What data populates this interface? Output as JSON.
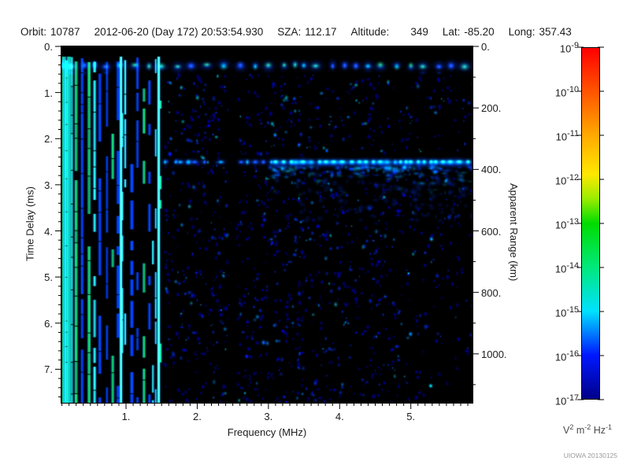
{
  "header": {
    "items": [
      {
        "label": "Orbit:",
        "value": "10787"
      },
      {
        "label": "",
        "value": "2012-06-20 (Day 172) 20:53:54.930"
      },
      {
        "label": "SZA:",
        "value": "112.17"
      },
      {
        "label": "Altitude:",
        "value": "349"
      },
      {
        "label": "Lat:",
        "value": "-85.20"
      },
      {
        "label": "Long:",
        "value": "357.43"
      }
    ]
  },
  "credit": "UIOWA 20130125",
  "chart_data": {
    "type": "heatmap",
    "title": "",
    "xlabel": "Frequency (MHz)",
    "ylabel_left": "Time Delay (ms)",
    "ylabel_right": "Apparent Range (km)",
    "xlim": [
      0.093,
      5.866
    ],
    "ylim_ms": [
      0,
      7.727
    ],
    "right_axis_km_per_ms": 150,
    "x_ticks": [
      1,
      2,
      3,
      4,
      5
    ],
    "x_tick_labels": [
      "1.",
      "2.",
      "3.",
      "4.",
      "5."
    ],
    "x_minor_step": 0.1,
    "y_ticks_ms": [
      0,
      1,
      2,
      3,
      4,
      5,
      6,
      7
    ],
    "y_tick_labels_left": [
      "0.",
      "1.",
      "2.",
      "3.",
      "4.",
      "5.",
      "6.",
      "7."
    ],
    "y_minor_step_ms": 0.2,
    "right_ticks_km": [
      0,
      200,
      400,
      600,
      800,
      1000
    ],
    "y_tick_labels_right": [
      "0.",
      "200.",
      "400.",
      "600.",
      "800.",
      "1000."
    ],
    "right_minor_step_km": 100,
    "grid": false,
    "plot_background": "#000000",
    "colorbar": {
      "scale": "log",
      "max_exp": -9,
      "min_exp": -17,
      "ticks": [
        {
          "base": "10",
          "exp": "-9"
        },
        {
          "base": "10",
          "exp": "-10"
        },
        {
          "base": "10",
          "exp": "-11"
        },
        {
          "base": "10",
          "exp": "-12"
        },
        {
          "base": "10",
          "exp": "-13"
        },
        {
          "base": "10",
          "exp": "-14"
        },
        {
          "base": "10",
          "exp": "-15"
        },
        {
          "base": "10",
          "exp": "-16"
        },
        {
          "base": "10",
          "exp": "-17"
        }
      ],
      "unit": {
        "u1": "V",
        "e1": "2",
        "u2": "m",
        "e2": "-2",
        "u3": "Hz",
        "e3": "-1"
      },
      "stops": [
        {
          "p": 0.0,
          "c": "#ff0000"
        },
        {
          "p": 0.125,
          "c": "#ff5500"
        },
        {
          "p": 0.25,
          "c": "#ffaa00"
        },
        {
          "p": 0.36,
          "c": "#ffe800"
        },
        {
          "p": 0.43,
          "c": "#9aec00"
        },
        {
          "p": 0.5,
          "c": "#00dc00"
        },
        {
          "p": 0.625,
          "c": "#00e87c"
        },
        {
          "p": 0.75,
          "c": "#00e2ff"
        },
        {
          "p": 0.875,
          "c": "#0018ff"
        },
        {
          "p": 1.0,
          "c": "#000088"
        }
      ]
    },
    "features": {
      "seed": 7,
      "top_band": {
        "y_ms_center": 0.42,
        "y_ms_range": [
          0.25,
          0.58
        ],
        "core_colors": [
          "#30e858",
          "#00dcc8",
          "#2a5aff"
        ],
        "halo_color": "#0030d8",
        "extent_mhz": [
          0.093,
          5.85
        ]
      },
      "harmonic_stripes": {
        "f_range_mhz": [
          0.093,
          1.55
        ],
        "y_ms_range": [
          0.22,
          7.727
        ],
        "colors": [
          "#10d840",
          "#30ffd0",
          "#0040ff"
        ],
        "bright_stripes_mhz": [
          0.93,
          1.46
        ],
        "bright_color": "#60ffe0"
      },
      "ground_echo": {
        "y_ms_center": 2.507,
        "faint_f_mhz": [
          1.55,
          3.1
        ],
        "bright_f_mhz": [
          3.1,
          5.85
        ],
        "gap_f_mhz": [
          2.42,
          2.6
        ],
        "halo_color": "#0044ff",
        "mid_color": "#00e0ff",
        "core_color": "#38e048"
      },
      "diffuse_below_echo": {
        "y_ms_range": [
          2.6,
          3.6
        ],
        "f_mhz": [
          3.0,
          5.85
        ],
        "color": "#00a0e0"
      },
      "noise_speckle": {
        "f_range_mhz": [
          1.5,
          5.85
        ],
        "y_ms_range": [
          0.6,
          7.727
        ],
        "colors": [
          "#0000d4",
          "#0034ff",
          "#0090ff",
          "#00e0ff"
        ],
        "count": 1600
      },
      "dark_lane_mhz": 2.5
    }
  }
}
